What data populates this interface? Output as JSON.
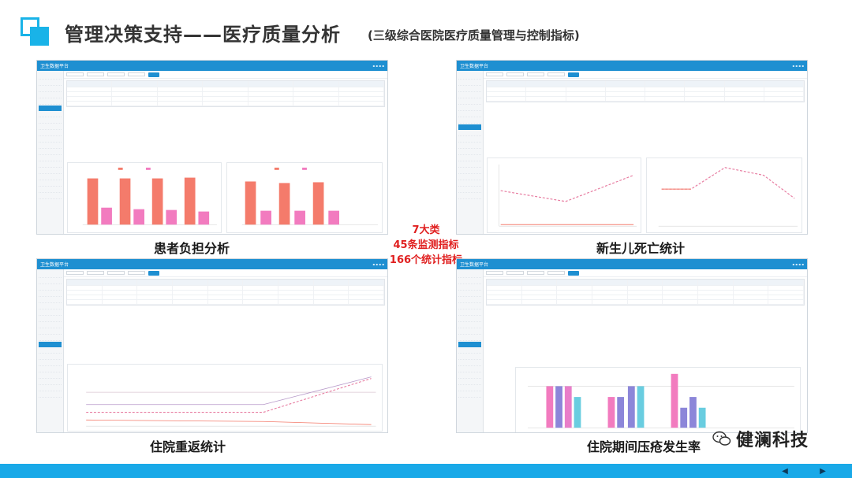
{
  "header": {
    "title": "管理决策支持——医疗质量分析",
    "subtitle": "(三级综合医院医疗质量管理与控制指标)"
  },
  "panels": {
    "top_left": {
      "brand": "卫生数据平台",
      "caption": "患者负担分析"
    },
    "top_right": {
      "brand": "卫生数据平台",
      "caption": "新生儿死亡统计"
    },
    "bottom_left": {
      "brand": "卫生数据平台",
      "caption": "住院重返统计"
    },
    "bottom_right": {
      "brand": "卫生数据平台",
      "caption": "住院期间压疮发生率"
    }
  },
  "center_note": {
    "line1": "7大类",
    "line2": "45条监测指标",
    "line3": "166个统计指标"
  },
  "watermark": {
    "text": "健澜科技",
    "icon": "wechat-icon"
  },
  "nav": {
    "prev_icon": "prev-arrow-icon",
    "next_icon": "next-arrow-icon"
  },
  "colors": {
    "accent": "#19a9e8",
    "panel_header": "#1e8fd1",
    "bar_primary": "#f47b6b",
    "bar_secondary": "#f27bbf",
    "note_red": "#e02020"
  }
}
